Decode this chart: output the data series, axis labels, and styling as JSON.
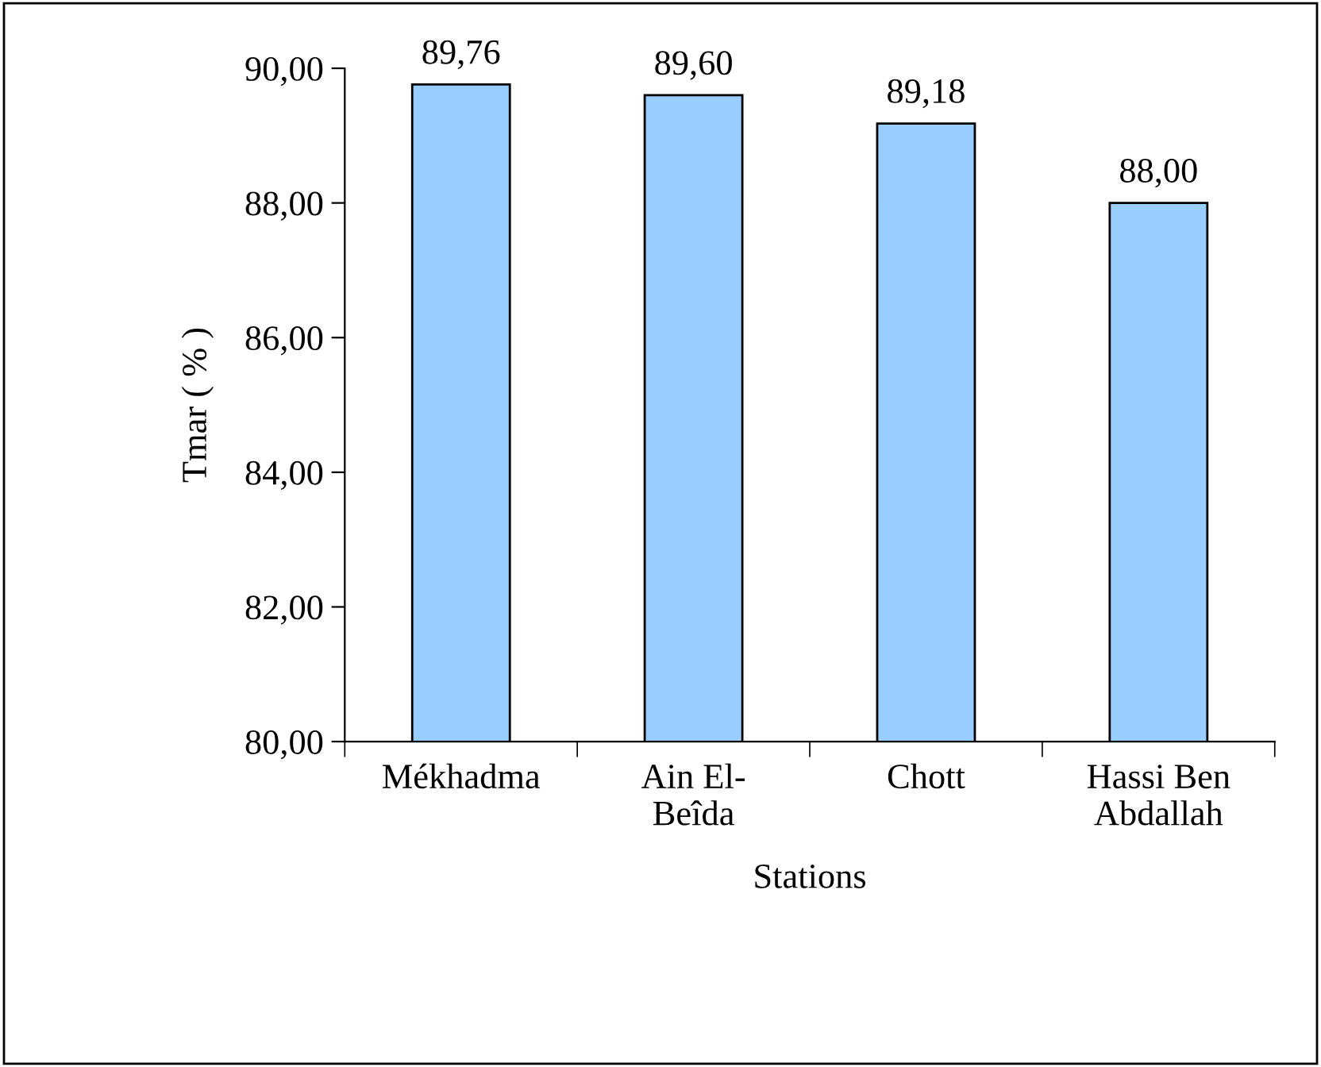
{
  "chart_data": {
    "type": "bar",
    "xlabel": "Stations",
    "ylabel": "Tmar ( % )",
    "categories": [
      "Mékhadma",
      "Ain El-\nBeîda",
      "Chott",
      "Hassi Ben\nAbdallah"
    ],
    "values": [
      89.76,
      89.6,
      89.18,
      88.0
    ],
    "value_labels": [
      "89,76",
      "89,60",
      "89,18",
      "88,00"
    ],
    "color": "#99ccff",
    "ylim": [
      80,
      90
    ],
    "yticks": [
      {
        "value": 80,
        "label": "80,00"
      },
      {
        "value": 82,
        "label": "82,00"
      },
      {
        "value": 84,
        "label": "84,00"
      },
      {
        "value": 86,
        "label": "86,00"
      },
      {
        "value": 88,
        "label": "88,00"
      },
      {
        "value": 90,
        "label": "90,00"
      }
    ],
    "grid": false,
    "legend": false
  }
}
